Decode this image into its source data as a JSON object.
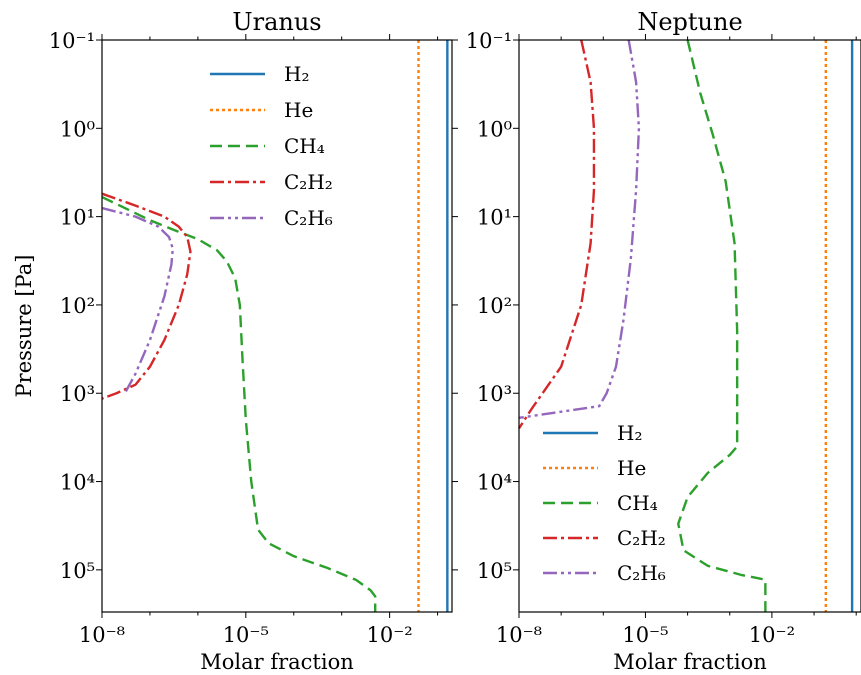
{
  "chart_data": [
    {
      "type": "line",
      "title": "Uranus",
      "xlabel": "Molar fraction",
      "ylabel": "Pressure [Pa]",
      "xscale": "log",
      "yscale": "log",
      "y_inverted": true,
      "xlim": [
        1e-08,
        0.2
      ],
      "ylim": [
        300000,
        0.1
      ],
      "xticks": [
        {
          "value": 1e-08,
          "label": "10⁻⁸"
        },
        {
          "value": 1e-05,
          "label": "10⁻⁵"
        },
        {
          "value": 0.01,
          "label": "10⁻²"
        }
      ],
      "yticks": [
        {
          "value": 0.1,
          "label": "10⁻¹"
        },
        {
          "value": 1,
          "label": "10⁰"
        },
        {
          "value": 10,
          "label": "10¹"
        },
        {
          "value": 100,
          "label": "10²"
        },
        {
          "value": 1000,
          "label": "10³"
        },
        {
          "value": 10000,
          "label": "10⁴"
        },
        {
          "value": 100000,
          "label": "10⁵"
        }
      ],
      "grid": false,
      "legend_position": "top",
      "series": [
        {
          "name": "H₂",
          "color": "#1f77b4",
          "style": "solid",
          "points": [
            [
              0.16,
              0.1
            ],
            [
              0.16,
              300000
            ]
          ]
        },
        {
          "name": "He",
          "color": "#ff7f0e",
          "style": "dotted",
          "points": [
            [
              0.04,
              0.1
            ],
            [
              0.04,
              300000
            ]
          ]
        },
        {
          "name": "CH₄",
          "color": "#2ca02c",
          "style": "dashed",
          "points": [
            [
              1e-08,
              6
            ],
            [
              3e-08,
              8
            ],
            [
              1e-07,
              11
            ],
            [
              3e-07,
              14
            ],
            [
              1e-06,
              18
            ],
            [
              2.5e-06,
              24
            ],
            [
              4e-06,
              32
            ],
            [
              6e-06,
              50
            ],
            [
              7.5e-06,
              100
            ],
            [
              8.5e-06,
              400
            ],
            [
              1e-05,
              2000
            ],
            [
              1.3e-05,
              10000
            ],
            [
              1.8e-05,
              35000
            ],
            [
              3e-05,
              50000
            ],
            [
              0.0001,
              70000
            ],
            [
              0.0005,
              95000
            ],
            [
              0.002,
              130000
            ],
            [
              0.004,
              170000
            ],
            [
              0.005,
              200000
            ],
            [
              0.005,
              300000
            ]
          ]
        },
        {
          "name": "C₂H₂",
          "color": "#d62728",
          "style": "dashdot",
          "points": [
            [
              1e-08,
              5.5
            ],
            [
              5e-08,
              7.5
            ],
            [
              2e-07,
              10
            ],
            [
              4e-07,
              13
            ],
            [
              6e-07,
              17
            ],
            [
              7e-07,
              25
            ],
            [
              6e-07,
              45
            ],
            [
              4e-07,
              100
            ],
            [
              2e-07,
              250
            ],
            [
              1e-07,
              500
            ],
            [
              5e-08,
              800
            ],
            [
              2e-08,
              1000
            ],
            [
              1e-08,
              1150
            ]
          ]
        },
        {
          "name": "C₂H₆",
          "color": "#9467bd",
          "style": "dashdotdot",
          "points": [
            [
              1e-08,
              8
            ],
            [
              5e-08,
              10
            ],
            [
              1.5e-07,
              13
            ],
            [
              2.5e-07,
              17
            ],
            [
              3e-07,
              23
            ],
            [
              2.8e-07,
              35
            ],
            [
              2e-07,
              80
            ],
            [
              1e-07,
              250
            ],
            [
              5e-08,
              600
            ],
            [
              3e-08,
              1000
            ]
          ]
        }
      ]
    },
    {
      "type": "line",
      "title": "Neptune",
      "xlabel": "Molar fraction",
      "ylabel": "",
      "xscale": "log",
      "yscale": "log",
      "y_inverted": true,
      "xlim": [
        1e-08,
        1.3
      ],
      "ylim": [
        300000,
        0.1
      ],
      "xticks": [
        {
          "value": 1e-08,
          "label": "10⁻⁸"
        },
        {
          "value": 1e-05,
          "label": "10⁻⁵"
        },
        {
          "value": 0.01,
          "label": "10⁻²"
        }
      ],
      "yticks": [
        {
          "value": 0.1,
          "label": "10⁻¹"
        },
        {
          "value": 1,
          "label": "10⁰"
        },
        {
          "value": 10,
          "label": "10¹"
        },
        {
          "value": 100,
          "label": "10²"
        },
        {
          "value": 1000,
          "label": "10³"
        },
        {
          "value": 10000,
          "label": "10⁴"
        },
        {
          "value": 100000,
          "label": "10⁵"
        }
      ],
      "grid": false,
      "legend_position": "lower left",
      "series": [
        {
          "name": "H₂",
          "color": "#1f77b4",
          "style": "solid",
          "points": [
            [
              0.8,
              0.1
            ],
            [
              0.8,
              300000
            ]
          ]
        },
        {
          "name": "He",
          "color": "#ff7f0e",
          "style": "dotted",
          "points": [
            [
              0.19,
              0.1
            ],
            [
              0.19,
              300000
            ]
          ]
        },
        {
          "name": "CH₄",
          "color": "#2ca02c",
          "style": "dashed",
          "points": [
            [
              0.0001,
              0.1
            ],
            [
              0.0002,
              0.4
            ],
            [
              0.0004,
              1.2
            ],
            [
              0.0008,
              4
            ],
            [
              0.0013,
              20
            ],
            [
              0.0015,
              200
            ],
            [
              0.0015,
              4000
            ],
            [
              0.001,
              5000
            ],
            [
              0.0003,
              8000
            ],
            [
              0.0001,
              15000
            ],
            [
              6e-05,
              30000
            ],
            [
              8e-05,
              60000
            ],
            [
              0.0003,
              90000
            ],
            [
              0.002,
              115000
            ],
            [
              0.005,
              125000
            ],
            [
              0.007,
              130000
            ],
            [
              0.007,
              300000
            ]
          ]
        },
        {
          "name": "C₂H₂",
          "color": "#d62728",
          "style": "dashdot",
          "points": [
            [
              3e-07,
              0.1
            ],
            [
              5e-07,
              0.3
            ],
            [
              6e-07,
              1
            ],
            [
              6e-07,
              5
            ],
            [
              5e-07,
              20
            ],
            [
              3e-07,
              100
            ],
            [
              1e-07,
              500
            ],
            [
              2e-08,
              1500
            ],
            [
              1e-08,
              2500
            ]
          ]
        },
        {
          "name": "C₂H₆",
          "color": "#9467bd",
          "style": "dashdotdot",
          "points": [
            [
              4e-06,
              0.1
            ],
            [
              6e-06,
              0.3
            ],
            [
              7e-06,
              1
            ],
            [
              6e-06,
              5
            ],
            [
              4.5e-06,
              30
            ],
            [
              3e-06,
              150
            ],
            [
              2e-06,
              500
            ],
            [
              1.2e-06,
              1000
            ],
            [
              8e-07,
              1400
            ],
            [
              1e-08,
              1900
            ]
          ]
        }
      ]
    }
  ]
}
